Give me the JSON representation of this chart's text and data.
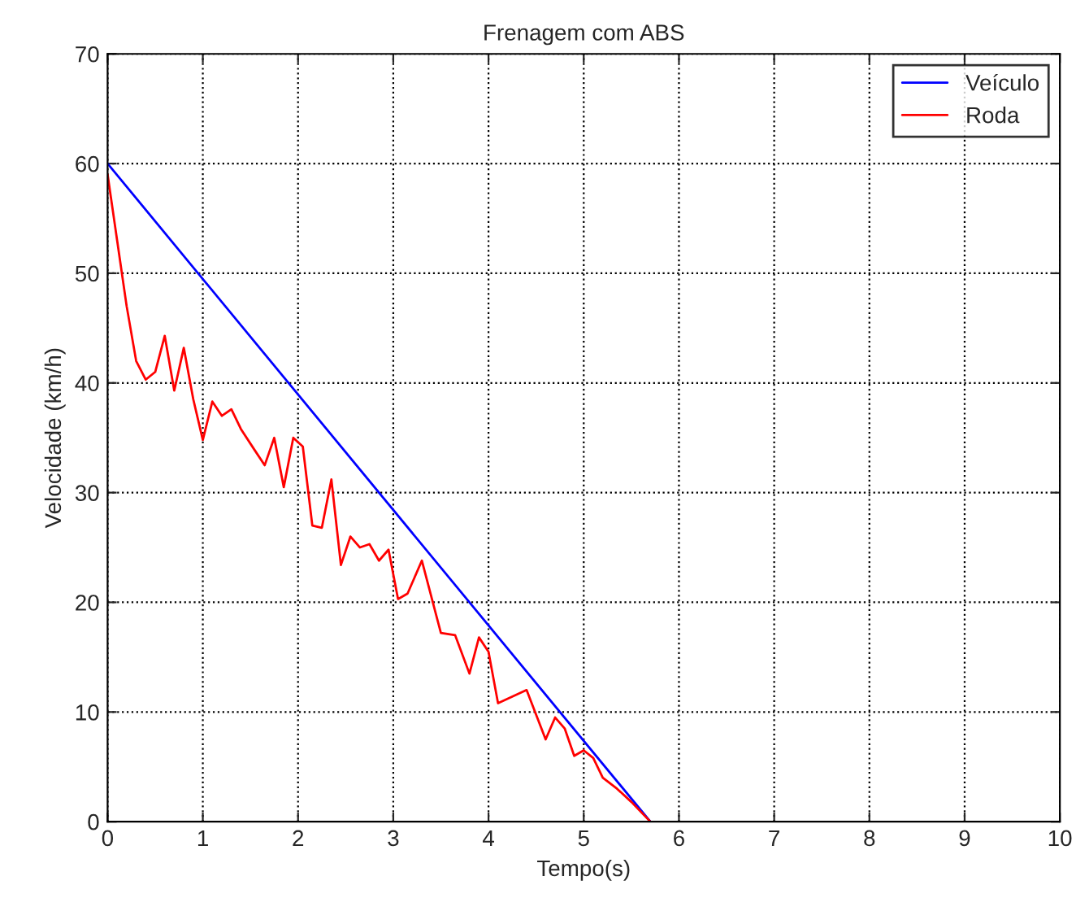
{
  "chart_data": {
    "type": "line",
    "title": "Frenagem com ABS",
    "xlabel": "Tempo(s)",
    "ylabel": "Velocidade (km/h)",
    "xlim": [
      0,
      10
    ],
    "ylim": [
      0,
      70
    ],
    "xticks": [
      0,
      1,
      2,
      3,
      4,
      5,
      6,
      7,
      8,
      9,
      10
    ],
    "yticks": [
      0,
      10,
      20,
      30,
      40,
      50,
      60,
      70
    ],
    "grid": true,
    "legend": "top right",
    "series": [
      {
        "name": "Veículo",
        "color": "#0000ff",
        "x": [
          0,
          5.7
        ],
        "values": [
          60,
          0
        ]
      },
      {
        "name": "Roda",
        "color": "#ff0000",
        "x": [
          0,
          0.1,
          0.2,
          0.3,
          0.4,
          0.5,
          0.6,
          0.7,
          0.8,
          0.9,
          1.0,
          1.1,
          1.2,
          1.3,
          1.4,
          1.55,
          1.65,
          1.75,
          1.85,
          1.95,
          2.05,
          2.15,
          2.25,
          2.35,
          2.45,
          2.55,
          2.65,
          2.75,
          2.85,
          2.95,
          3.05,
          3.15,
          3.3,
          3.5,
          3.65,
          3.8,
          3.9,
          4.0,
          4.1,
          4.4,
          4.6,
          4.7,
          4.8,
          4.9,
          5.0,
          5.1,
          5.2,
          5.35,
          5.5,
          5.7
        ],
        "values": [
          59,
          53,
          47,
          42,
          40.3,
          41,
          44.3,
          39.3,
          43.2,
          38.5,
          34.8,
          38.3,
          37,
          37.6,
          35.8,
          33.8,
          32.5,
          35,
          30.5,
          35,
          34.2,
          27,
          26.8,
          31.2,
          23.4,
          26,
          25,
          25.3,
          23.8,
          24.8,
          20.3,
          20.8,
          23.8,
          17.2,
          17,
          13.5,
          16.8,
          15.5,
          10.8,
          12,
          7.5,
          9.5,
          8.5,
          6,
          6.5,
          5.8,
          4,
          3,
          1.8,
          0
        ]
      }
    ]
  }
}
